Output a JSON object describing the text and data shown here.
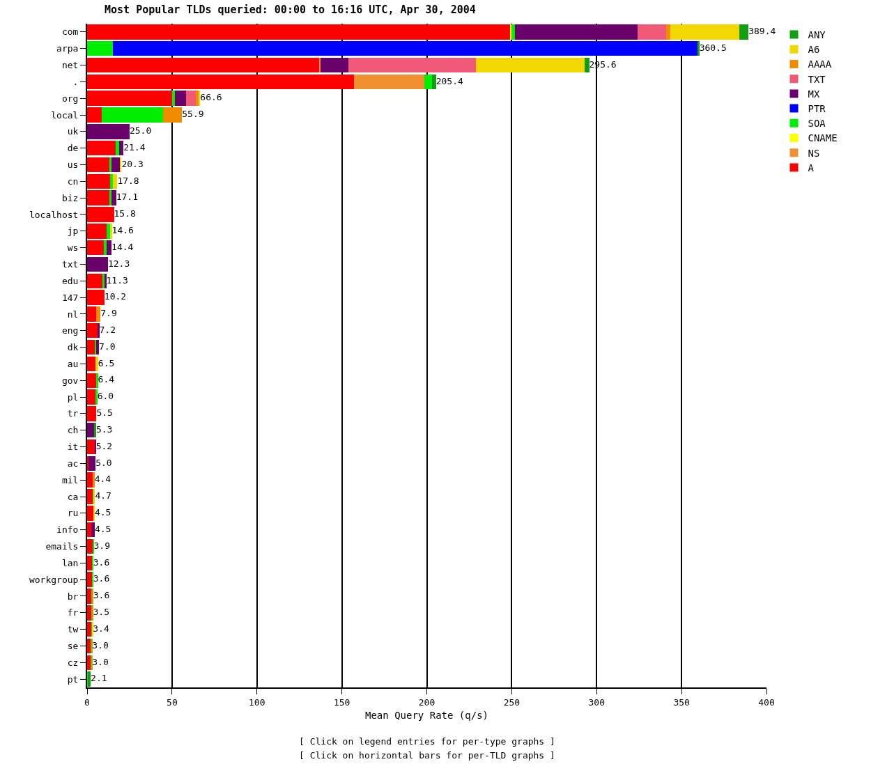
{
  "chart_data": {
    "type": "bar",
    "orientation": "horizontal",
    "stacked": true,
    "title": "Most Popular TLDs queried: 00:00 to 16:16 UTC, Apr 30, 2004",
    "xlabel": "Mean Query Rate (q/s)",
    "annotations": [
      "[ Click on legend entries for per-type graphs ]",
      "[ Click on horizontal bars for per-TLD graphs ]"
    ],
    "categories": [
      "com",
      "arpa",
      "net",
      ".",
      "org",
      "local",
      "uk",
      "de",
      "us",
      "cn",
      "biz",
      "localhost",
      "jp",
      "ws",
      "txt",
      "edu",
      "147",
      "nl",
      "eng",
      "dk",
      "au",
      "gov",
      "pl",
      "tr",
      "ch",
      "it",
      "ac",
      "mil",
      "ca",
      "ru",
      "info",
      "emails",
      "lan",
      "workgroup",
      "br",
      "fr",
      "tw",
      "se",
      "cz",
      "pt"
    ],
    "series": [
      {
        "name": "A",
        "color": "#ff0000",
        "values": [
          249.0,
          0,
          137.0,
          157.1,
          50.0,
          8.8,
          0,
          16.8,
          13.5,
          13.5,
          13.0,
          15.8,
          11.6,
          10.0,
          0,
          9.0,
          10.2,
          5.5,
          6.2,
          4.5,
          5.0,
          5.4,
          5.2,
          5.5,
          0,
          4.6,
          1.0,
          3.6,
          3.5,
          3.7,
          2.5,
          3.4,
          3.2,
          3.2,
          2.8,
          2.7,
          2.6,
          2.2,
          2.2,
          0
        ]
      },
      {
        "name": "NS",
        "color": "#f09030",
        "values": [
          0,
          0,
          0.5,
          41.6,
          0,
          0,
          0,
          0,
          0,
          0,
          0,
          0,
          0,
          0,
          0,
          0,
          0,
          0,
          0,
          0,
          0,
          0,
          0,
          0,
          0,
          0,
          0,
          0,
          0,
          0,
          0,
          0,
          0,
          0,
          0,
          0,
          0,
          0,
          0,
          0
        ]
      },
      {
        "name": "CNAME",
        "color": "#ffff00",
        "values": [
          1.0,
          0,
          0,
          0,
          0,
          0,
          0,
          0,
          0,
          0,
          0,
          0,
          0,
          0,
          0,
          0,
          0,
          0,
          0,
          0,
          0,
          0,
          0,
          0,
          0,
          0,
          0,
          0,
          0,
          0,
          0,
          0,
          0,
          0,
          0,
          0,
          0,
          0,
          0,
          0
        ]
      },
      {
        "name": "SOA",
        "color": "#00ee00",
        "values": [
          2.0,
          15.1,
          0,
          4.2,
          1.5,
          36.0,
          0,
          2.0,
          0.7,
          1.7,
          1.5,
          0,
          1.8,
          1.6,
          0,
          1.3,
          0,
          0,
          0,
          1.0,
          null,
          1.0,
          0.8,
          0,
          0,
          0,
          0,
          0,
          0.6,
          0.4,
          0,
          0.5,
          0.4,
          0.4,
          0.4,
          0.4,
          0.4,
          0.4,
          0.4,
          0.5
        ]
      },
      {
        "name": "PTR",
        "color": "#0000ff",
        "values": [
          0,
          344.4,
          0,
          0,
          0,
          0,
          0,
          0,
          0,
          0,
          0,
          0,
          0,
          0,
          0,
          0,
          0,
          0,
          0,
          0,
          0,
          0,
          0,
          0,
          0,
          0,
          0,
          0,
          0,
          0,
          0,
          0,
          0,
          0,
          0,
          0,
          0,
          0,
          0,
          0
        ]
      },
      {
        "name": "MX",
        "color": "#6a006a",
        "values": [
          72.0,
          0,
          16.5,
          0,
          6.7,
          0,
          25.0,
          2.6,
          5.3,
          0,
          2.6,
          0,
          0,
          2.8,
          12.3,
          1.0,
          0,
          0,
          1.0,
          1.5,
          0,
          0,
          0,
          0,
          4.0,
          0.6,
          4.0,
          0,
          0,
          0,
          2.0,
          0,
          0,
          0,
          0,
          0,
          0,
          0,
          0,
          0
        ]
      },
      {
        "name": "TXT",
        "color": "#f05a78",
        "values": [
          17.0,
          0,
          75.0,
          0,
          5.9,
          0,
          0,
          0,
          0,
          0,
          0,
          0,
          0,
          0,
          0,
          0,
          0,
          0,
          0,
          0,
          0,
          0,
          0,
          0,
          0,
          0,
          0,
          0,
          0,
          0,
          0,
          0,
          0,
          0,
          0,
          0,
          0,
          0,
          0,
          0
        ]
      },
      {
        "name": "AAAA",
        "color": "#f08c00",
        "values": [
          2.5,
          0,
          0,
          0,
          1.5,
          11.1,
          0,
          0,
          0,
          0,
          0,
          0,
          0,
          0,
          0,
          0,
          0,
          2.4,
          0,
          0,
          0,
          0,
          0,
          0,
          0,
          0,
          0,
          0.8,
          0,
          0,
          0,
          0,
          0,
          0,
          0.4,
          0.4,
          0,
          0.4,
          0.4,
          0
        ]
      },
      {
        "name": "A6",
        "color": "#f0d800",
        "values": [
          40.4,
          0,
          64.0,
          0,
          1.0,
          0,
          0,
          0,
          0.8,
          2.6,
          0,
          0,
          1.2,
          0,
          0,
          0,
          0,
          0,
          0,
          0,
          1.5,
          0,
          0,
          0,
          0,
          0,
          0,
          0,
          0.6,
          0.4,
          0,
          0,
          0,
          0,
          0,
          0,
          0.4,
          0,
          0,
          0
        ]
      },
      {
        "name": "ANY",
        "color": "#129e12",
        "values": [
          5.5,
          1.0,
          2.6,
          2.5,
          0,
          0,
          0,
          0,
          0,
          0,
          0,
          0,
          0,
          0,
          0,
          0,
          0,
          0,
          0,
          0,
          0,
          0,
          0,
          0,
          1.3,
          0,
          0,
          0,
          0,
          0,
          0,
          0,
          0,
          0,
          0,
          0,
          0,
          0,
          0,
          1.6
        ]
      }
    ],
    "totals": [
      "389.4",
      "360.5",
      "295.6",
      "205.4",
      "66.6",
      "55.9",
      "25.0",
      "21.4",
      "20.3",
      "17.8",
      "17.1",
      "15.8",
      "14.6",
      "14.4",
      "12.3",
      "11.3",
      "10.2",
      "7.9",
      "7.2",
      "7.0",
      "6.5",
      "6.4",
      "6.0",
      "5.5",
      "5.3",
      "5.2",
      "5.0",
      "4.4",
      "4.7",
      "4.5",
      "4.5",
      "3.9",
      "3.6",
      "3.6",
      "3.6",
      "3.5",
      "3.4",
      "3.0",
      "3.0",
      "2.1"
    ],
    "xlim": [
      0,
      400
    ],
    "xticks": [
      0,
      50,
      100,
      150,
      200,
      250,
      300,
      350,
      400
    ],
    "grid": "x",
    "legend": "top right"
  }
}
